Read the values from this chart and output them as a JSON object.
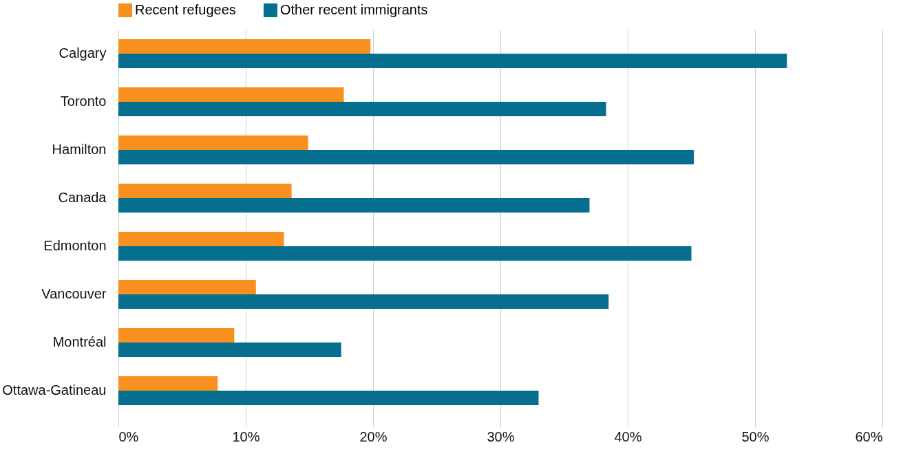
{
  "chart_data": {
    "type": "bar",
    "orientation": "horizontal",
    "categories": [
      "Calgary",
      "Toronto",
      "Hamilton",
      "Canada",
      "Edmonton",
      "Vancouver",
      "Montréal",
      "Ottawa-Gatineau"
    ],
    "series": [
      {
        "name": "Recent refugees",
        "color": "#f7901e",
        "values": [
          19.8,
          17.7,
          14.9,
          13.6,
          13.0,
          10.8,
          9.1,
          7.8
        ]
      },
      {
        "name": "Other recent immigrants",
        "color": "#066f8f",
        "values": [
          52.5,
          38.3,
          45.2,
          37.0,
          45.0,
          38.5,
          17.5,
          33.0
        ]
      }
    ],
    "xlim": [
      0,
      60
    ],
    "xticks": [
      {
        "value": 0,
        "label": "0%"
      },
      {
        "value": 10,
        "label": "10%"
      },
      {
        "value": 20,
        "label": "20%"
      },
      {
        "value": 30,
        "label": "30%"
      },
      {
        "value": 40,
        "label": "40%"
      },
      {
        "value": 50,
        "label": "50%"
      },
      {
        "value": 60,
        "label": "60%"
      }
    ],
    "grid": "x",
    "legend": "top"
  }
}
